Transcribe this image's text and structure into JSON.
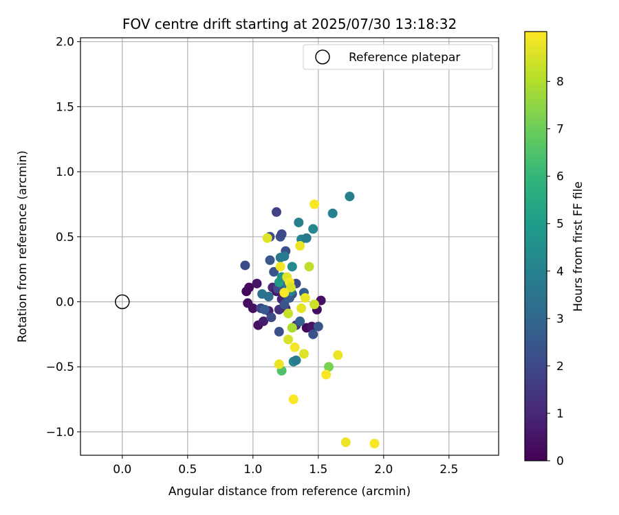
{
  "chart_data": {
    "type": "scatter",
    "title": "FOV centre drift starting at 2025/07/30 13:18:32",
    "xlabel": "Angular distance from reference (arcmin)",
    "ylabel": "Rotation from reference (arcmin)",
    "xlim": [
      -0.32,
      2.88
    ],
    "ylim": [
      -1.18,
      2.03
    ],
    "xticks": [
      0.0,
      0.5,
      1.0,
      1.5,
      2.0,
      2.5
    ],
    "xtick_labels": [
      "0.0",
      "0.5",
      "1.0",
      "1.5",
      "2.0",
      "2.5"
    ],
    "yticks": [
      -1.0,
      -0.5,
      0.0,
      0.5,
      1.0,
      1.5,
      2.0
    ],
    "ytick_labels": [
      "−1.0",
      "−0.5",
      "0.0",
      "0.5",
      "1.0",
      "1.5",
      "2.0"
    ],
    "grid": true,
    "legend": {
      "placement": "top-right",
      "entries": [
        {
          "label": "Reference platepar",
          "marker": "open-circle"
        }
      ]
    },
    "reference_point": {
      "x": 0.0,
      "y": 0.0
    },
    "colorbar": {
      "label": "Hours from first FF file",
      "colormap": "viridis",
      "range": [
        0,
        9.05
      ],
      "ticks": [
        0,
        1,
        2,
        3,
        4,
        5,
        6,
        7,
        8
      ],
      "tick_labels": [
        "0",
        "1",
        "2",
        "3",
        "4",
        "5",
        "6",
        "7",
        "8"
      ],
      "stops": [
        "#440154",
        "#482878",
        "#3e4989",
        "#31688e",
        "#26828e",
        "#1f9e89",
        "#35b779",
        "#6ece58",
        "#b5de2b",
        "#fde725"
      ]
    },
    "points": [
      {
        "x": 0.95,
        "y": 0.08,
        "h": 0.1
      },
      {
        "x": 0.97,
        "y": 0.11,
        "h": 0.2
      },
      {
        "x": 0.96,
        "y": -0.01,
        "h": 0.3
      },
      {
        "x": 1.0,
        "y": -0.05,
        "h": 0.4
      },
      {
        "x": 1.03,
        "y": 0.14,
        "h": 0.5
      },
      {
        "x": 1.04,
        "y": -0.18,
        "h": 0.4
      },
      {
        "x": 1.08,
        "y": -0.15,
        "h": 0.7
      },
      {
        "x": 1.12,
        "y": -0.07,
        "h": 0.8
      },
      {
        "x": 1.15,
        "y": 0.11,
        "h": 1.0
      },
      {
        "x": 1.18,
        "y": 0.08,
        "h": 0.6
      },
      {
        "x": 1.22,
        "y": 0.02,
        "h": 0.9
      },
      {
        "x": 1.25,
        "y": -0.05,
        "h": 1.1
      },
      {
        "x": 1.41,
        "y": -0.2,
        "h": 0.2
      },
      {
        "x": 1.45,
        "y": -0.19,
        "h": 0.5
      },
      {
        "x": 1.49,
        "y": -0.06,
        "h": 0.3
      },
      {
        "x": 1.52,
        "y": 0.01,
        "h": 0.4
      },
      {
        "x": 1.2,
        "y": -0.06,
        "h": 1.2
      },
      {
        "x": 1.33,
        "y": -0.18,
        "h": 1.4
      },
      {
        "x": 1.18,
        "y": 0.69,
        "h": 1.8
      },
      {
        "x": 0.94,
        "y": 0.28,
        "h": 2.1
      },
      {
        "x": 1.13,
        "y": 0.5,
        "h": 2.0
      },
      {
        "x": 1.21,
        "y": 0.5,
        "h": 2.3
      },
      {
        "x": 1.22,
        "y": 0.52,
        "h": 2.0
      },
      {
        "x": 1.25,
        "y": 0.39,
        "h": 2.2
      },
      {
        "x": 1.13,
        "y": 0.32,
        "h": 2.5
      },
      {
        "x": 1.16,
        "y": 0.23,
        "h": 2.4
      },
      {
        "x": 1.19,
        "y": 0.1,
        "h": 2.0
      },
      {
        "x": 1.23,
        "y": 0.12,
        "h": 2.6
      },
      {
        "x": 1.27,
        "y": 0.03,
        "h": 2.3
      },
      {
        "x": 1.3,
        "y": 0.06,
        "h": 2.2
      },
      {
        "x": 1.06,
        "y": -0.05,
        "h": 1.9
      },
      {
        "x": 1.09,
        "y": -0.06,
        "h": 2.6
      },
      {
        "x": 1.14,
        "y": -0.12,
        "h": 2.1
      },
      {
        "x": 1.2,
        "y": -0.23,
        "h": 2.2
      },
      {
        "x": 1.24,
        "y": -0.02,
        "h": 2.4
      },
      {
        "x": 1.28,
        "y": 0.03,
        "h": 2.6
      },
      {
        "x": 1.36,
        "y": -0.15,
        "h": 2.8
      },
      {
        "x": 1.46,
        "y": -0.25,
        "h": 2.3
      },
      {
        "x": 1.5,
        "y": -0.19,
        "h": 2.4
      },
      {
        "x": 1.39,
        "y": 0.07,
        "h": 2.7
      },
      {
        "x": 1.33,
        "y": 0.14,
        "h": 2.0
      },
      {
        "x": 1.21,
        "y": 0.34,
        "h": 3.6
      },
      {
        "x": 1.24,
        "y": 0.35,
        "h": 3.8
      },
      {
        "x": 1.3,
        "y": 0.27,
        "h": 4.3
      },
      {
        "x": 1.35,
        "y": 0.61,
        "h": 3.9
      },
      {
        "x": 1.37,
        "y": 0.48,
        "h": 4.1
      },
      {
        "x": 1.41,
        "y": 0.49,
        "h": 3.7
      },
      {
        "x": 1.46,
        "y": 0.56,
        "h": 4.2
      },
      {
        "x": 1.61,
        "y": 0.68,
        "h": 4.0
      },
      {
        "x": 1.74,
        "y": 0.81,
        "h": 3.9
      },
      {
        "x": 1.07,
        "y": 0.06,
        "h": 3.5
      },
      {
        "x": 1.12,
        "y": 0.04,
        "h": 3.3
      },
      {
        "x": 1.2,
        "y": 0.15,
        "h": 5.0
      },
      {
        "x": 1.22,
        "y": 0.19,
        "h": 4.6
      },
      {
        "x": 1.26,
        "y": 0.1,
        "h": 3.6
      },
      {
        "x": 1.29,
        "y": 0.08,
        "h": 3.9
      },
      {
        "x": 1.31,
        "y": -0.46,
        "h": 4.2
      },
      {
        "x": 1.33,
        "y": -0.45,
        "h": 3.8
      },
      {
        "x": 1.22,
        "y": -0.53,
        "h": 6.5
      },
      {
        "x": 1.58,
        "y": -0.5,
        "h": 7.2
      },
      {
        "x": 1.11,
        "y": 0.49,
        "h": 8.6
      },
      {
        "x": 1.47,
        "y": 0.75,
        "h": 9.0
      },
      {
        "x": 1.36,
        "y": 0.43,
        "h": 8.8
      },
      {
        "x": 1.43,
        "y": 0.27,
        "h": 8.2
      },
      {
        "x": 1.21,
        "y": 0.27,
        "h": 8.9
      },
      {
        "x": 1.26,
        "y": 0.19,
        "h": 8.6
      },
      {
        "x": 1.28,
        "y": 0.15,
        "h": 8.9
      },
      {
        "x": 1.29,
        "y": 0.11,
        "h": 8.5
      },
      {
        "x": 1.24,
        "y": 0.07,
        "h": 9.0
      },
      {
        "x": 1.4,
        "y": 0.03,
        "h": 8.8
      },
      {
        "x": 1.47,
        "y": -0.02,
        "h": 8.4
      },
      {
        "x": 1.37,
        "y": -0.05,
        "h": 8.7
      },
      {
        "x": 1.27,
        "y": -0.09,
        "h": 8.3
      },
      {
        "x": 1.3,
        "y": -0.2,
        "h": 7.9
      },
      {
        "x": 1.27,
        "y": -0.29,
        "h": 8.5
      },
      {
        "x": 1.32,
        "y": -0.35,
        "h": 8.9
      },
      {
        "x": 1.39,
        "y": -0.4,
        "h": 8.6
      },
      {
        "x": 1.2,
        "y": -0.48,
        "h": 8.8
      },
      {
        "x": 1.65,
        "y": -0.41,
        "h": 8.8
      },
      {
        "x": 1.56,
        "y": -0.56,
        "h": 9.0
      },
      {
        "x": 1.31,
        "y": -0.75,
        "h": 9.0
      },
      {
        "x": 1.71,
        "y": -1.08,
        "h": 8.8
      },
      {
        "x": 1.93,
        "y": -1.09,
        "h": 9.0
      }
    ]
  }
}
